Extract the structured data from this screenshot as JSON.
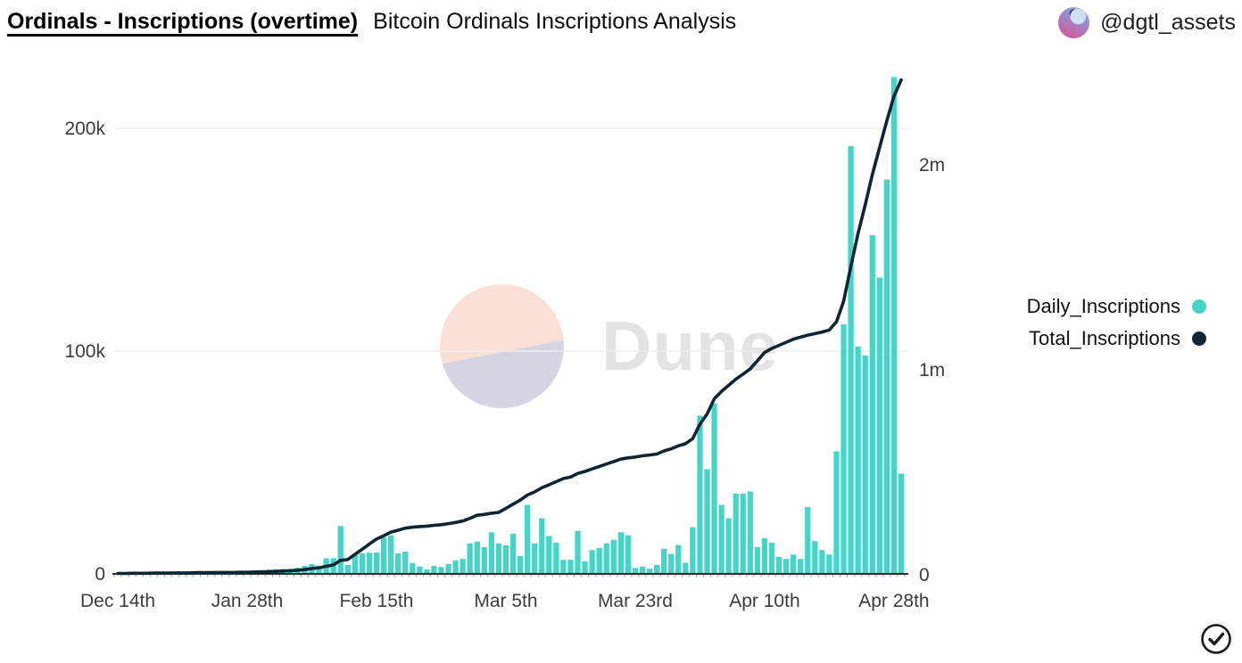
{
  "header": {
    "title": "Ordinals - Inscriptions (overtime)",
    "subtitle": "Bitcoin Ordinals Inscriptions Analysis"
  },
  "profile": {
    "handle": "@dgtl_assets"
  },
  "watermark": {
    "text": "Dune"
  },
  "legend": {
    "items": [
      {
        "label": "Daily_Inscriptions",
        "color": "#45D4C8"
      },
      {
        "label": "Total_Inscriptions",
        "color": "#0E2532"
      }
    ]
  },
  "verified_badge": {
    "icon": "circled-checkmark",
    "color": "#1a1a1a"
  },
  "chart_data": {
    "type": "bar",
    "title": "Bitcoin Ordinals Inscriptions Analysis",
    "grid": "horizontal-light",
    "legend_position": "right",
    "x_axis": {
      "tick_labels": [
        "Dec 14th",
        "Jan 28th",
        "Feb 15th",
        "Mar 5th",
        "Mar 23rd",
        "Apr 10th",
        "Apr 28th"
      ],
      "tick_indices": [
        0,
        18,
        36,
        54,
        72,
        90,
        108
      ]
    },
    "left_axis": {
      "ticks": [
        "0",
        "100k",
        "200k"
      ],
      "values_k": [
        0,
        100,
        200
      ],
      "max_k": 232
    },
    "right_axis": {
      "ticks": [
        "0",
        "1m",
        "2m"
      ],
      "values_m": [
        0,
        1,
        2
      ],
      "max_m": 2.45
    },
    "series": [
      {
        "name": "Daily_Inscriptions",
        "type": "bar",
        "axis": "left",
        "color": "#45D4C8",
        "values_thousands": [
          0.05,
          0.08,
          0.1,
          0.12,
          0.15,
          0.18,
          0.2,
          0.25,
          0.3,
          0.32,
          0.35,
          0.4,
          0.45,
          0.5,
          0.55,
          0.6,
          0.7,
          0.8,
          1.0,
          1.3,
          1.6,
          1.9,
          2.1,
          2.2,
          2.3,
          2.7,
          3.6,
          4.4,
          3.6,
          7.0,
          7.0,
          21.5,
          4.0,
          8.7,
          9.2,
          9.5,
          9.6,
          16.4,
          17.3,
          9.2,
          10.0,
          4.9,
          3.3,
          2.0,
          3.6,
          3.1,
          4.4,
          6.0,
          6.7,
          13.7,
          14.5,
          12.0,
          18.7,
          13.7,
          12.9,
          18.0,
          8.0,
          31.0,
          13.7,
          25.0,
          17.0,
          14.0,
          6.3,
          6.3,
          19.3,
          5.7,
          10.7,
          11.6,
          13.7,
          15.3,
          18.7,
          17.3,
          2.7,
          3.3,
          2.3,
          4.0,
          11.3,
          9.0,
          13.0,
          5.0,
          21.0,
          71.0,
          47.0,
          76.5,
          31.0,
          25.0,
          36.0,
          36.0,
          37.0,
          12.0,
          16.0,
          14.0,
          7.6,
          6.7,
          8.7,
          6.7,
          30.0,
          14.7,
          10.7,
          8.7,
          55.0,
          112.0,
          192.0,
          102.0,
          98.0,
          152.0,
          133.0,
          177.0,
          223.0,
          45.0
        ]
      },
      {
        "name": "Total_Inscriptions",
        "type": "line",
        "axis": "right",
        "color": "#0E2532",
        "values_millions": [
          0.002,
          0.002,
          0.003,
          0.003,
          0.003,
          0.004,
          0.004,
          0.004,
          0.005,
          0.005,
          0.005,
          0.006,
          0.006,
          0.006,
          0.007,
          0.007,
          0.007,
          0.008,
          0.008,
          0.009,
          0.01,
          0.011,
          0.012,
          0.014,
          0.015,
          0.018,
          0.021,
          0.026,
          0.03,
          0.037,
          0.044,
          0.066,
          0.07,
          0.095,
          0.12,
          0.145,
          0.17,
          0.186,
          0.204,
          0.213,
          0.223,
          0.228,
          0.231,
          0.233,
          0.237,
          0.24,
          0.245,
          0.251,
          0.258,
          0.271,
          0.286,
          0.29,
          0.296,
          0.3,
          0.32,
          0.34,
          0.36,
          0.385,
          0.4,
          0.42,
          0.435,
          0.45,
          0.465,
          0.472,
          0.49,
          0.5,
          0.512,
          0.524,
          0.536,
          0.548,
          0.56,
          0.566,
          0.57,
          0.576,
          0.58,
          0.585,
          0.6,
          0.61,
          0.625,
          0.635,
          0.66,
          0.73,
          0.78,
          0.855,
          0.89,
          0.92,
          0.95,
          0.975,
          1.0,
          1.04,
          1.08,
          1.1,
          1.115,
          1.13,
          1.145,
          1.155,
          1.165,
          1.172,
          1.18,
          1.19,
          1.23,
          1.33,
          1.5,
          1.66,
          1.8,
          1.95,
          2.08,
          2.21,
          2.33,
          2.41
        ]
      }
    ]
  }
}
